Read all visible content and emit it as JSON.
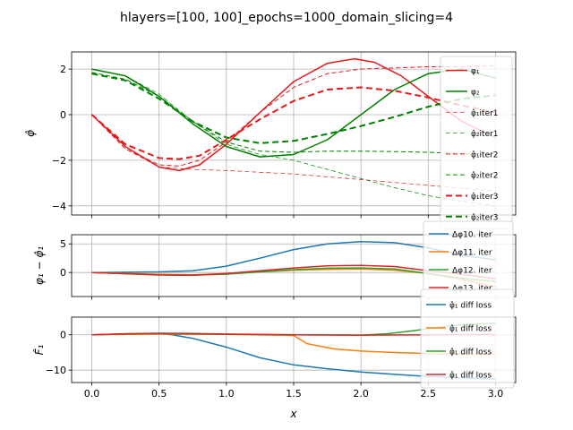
{
  "figure": {
    "title": "hlayers=[100, 100]_epochs=1000_domain_slicing=4"
  },
  "chart_data": [
    {
      "type": "line",
      "id": "top",
      "ylabel": "φ̂",
      "xlim": [
        -0.15,
        3.15
      ],
      "ylim": [
        -4.4,
        2.75
      ],
      "xticks": [
        0.0,
        0.5,
        1.0,
        1.5,
        2.0,
        2.5,
        3.0
      ],
      "yticks": [
        -4,
        -2,
        0,
        2
      ],
      "ytick_labels": [
        "−4",
        "−2",
        "0",
        "2"
      ],
      "grid": true,
      "legend_position": "upper-right",
      "series": [
        {
          "name": "φ₁",
          "color": "#e41a1c",
          "style": "solid",
          "width": 1.5,
          "x": [
            0,
            0.25,
            0.5,
            0.65,
            0.8,
            1.0,
            1.25,
            1.5,
            1.75,
            1.95,
            2.1,
            2.3,
            2.5,
            2.75,
            3.0
          ],
          "y": [
            0,
            -1.4,
            -2.3,
            -2.45,
            -2.2,
            -1.3,
            0.1,
            1.45,
            2.25,
            2.45,
            2.3,
            1.7,
            0.8,
            -0.3,
            -1.0
          ]
        },
        {
          "name": "φ₂",
          "color": "#008000",
          "style": "solid",
          "width": 1.5,
          "x": [
            0,
            0.25,
            0.5,
            0.75,
            1.0,
            1.25,
            1.5,
            1.75,
            2.0,
            2.25,
            2.5,
            2.75,
            3.0
          ],
          "y": [
            2.0,
            1.7,
            0.8,
            -0.4,
            -1.4,
            -1.85,
            -1.75,
            -1.1,
            0.0,
            1.1,
            1.8,
            2.0,
            1.6
          ]
        },
        {
          "name": "φ̂₁iter1",
          "color": "#e41a1c",
          "style": "dashed",
          "width": 0.7,
          "x": [
            0,
            0.25,
            0.5,
            0.75,
            1.0,
            1.5,
            2.0,
            2.5,
            3.0
          ],
          "y": [
            0,
            -1.5,
            -2.3,
            -2.4,
            -2.45,
            -2.6,
            -2.85,
            -3.1,
            -3.35
          ]
        },
        {
          "name": "φ̂₂iter1",
          "color": "#008000",
          "style": "dashed",
          "width": 0.7,
          "x": [
            0,
            0.25,
            0.5,
            0.75,
            1.0,
            1.25,
            1.5,
            1.75,
            2.0,
            2.25,
            2.5,
            2.75,
            3.0
          ],
          "y": [
            2.0,
            1.7,
            0.9,
            -0.3,
            -1.3,
            -1.75,
            -2.0,
            -2.4,
            -2.8,
            -3.2,
            -3.55,
            -3.8,
            -4.0
          ]
        },
        {
          "name": "φ̂₁iter2",
          "color": "#e41a1c",
          "style": "dashed",
          "width": 1.0,
          "x": [
            0,
            0.25,
            0.5,
            0.65,
            0.8,
            1.0,
            1.25,
            1.5,
            1.75,
            2.0,
            2.25,
            2.5,
            2.75,
            3.0
          ],
          "y": [
            0,
            -1.5,
            -2.2,
            -2.25,
            -2.0,
            -1.2,
            0.1,
            1.2,
            1.8,
            2.0,
            2.05,
            2.1,
            2.1,
            2.15
          ]
        },
        {
          "name": "φ̂₂iter2",
          "color": "#008000",
          "style": "dashed",
          "width": 1.0,
          "x": [
            0,
            0.25,
            0.5,
            0.75,
            1.0,
            1.25,
            1.5,
            1.75,
            2.0,
            2.25,
            2.5,
            2.75,
            3.0
          ],
          "y": [
            1.85,
            1.55,
            0.8,
            -0.3,
            -1.2,
            -1.6,
            -1.65,
            -1.6,
            -1.6,
            -1.62,
            -1.65,
            -1.7,
            -1.75
          ]
        },
        {
          "name": "φ̂₁iter3",
          "color": "#e41a1c",
          "style": "dashed",
          "width": 2.0,
          "x": [
            0,
            0.25,
            0.5,
            0.65,
            0.8,
            1.0,
            1.25,
            1.5,
            1.75,
            2.0,
            2.25,
            2.5,
            2.75,
            3.0
          ],
          "y": [
            0,
            -1.3,
            -1.9,
            -1.95,
            -1.8,
            -1.1,
            -0.2,
            0.6,
            1.1,
            1.2,
            1.05,
            0.75,
            0.4,
            0.1
          ]
        },
        {
          "name": "φ̂₂iter3",
          "color": "#008000",
          "style": "dashed",
          "width": 2.0,
          "x": [
            0,
            0.25,
            0.5,
            0.75,
            1.0,
            1.25,
            1.5,
            1.75,
            2.0,
            2.25,
            2.5,
            2.75,
            3.0
          ],
          "y": [
            1.8,
            1.5,
            0.7,
            -0.3,
            -1.0,
            -1.25,
            -1.15,
            -0.85,
            -0.5,
            -0.1,
            0.35,
            0.7,
            0.85
          ]
        }
      ]
    },
    {
      "type": "line",
      "id": "middle",
      "ylabel": "φ₁ − φ̂₁",
      "xlim": [
        -0.15,
        3.15
      ],
      "ylim": [
        -4.2,
        6.6
      ],
      "xticks": [
        0.0,
        0.5,
        1.0,
        1.5,
        2.0,
        2.5,
        3.0
      ],
      "yticks": [
        0,
        5
      ],
      "ytick_labels": [
        "0",
        "5"
      ],
      "grid": true,
      "legend_position": "right",
      "series": [
        {
          "name": "Δφ10. iter",
          "color": "#1f77b4",
          "x": [
            0,
            0.5,
            0.75,
            1.0,
            1.25,
            1.5,
            1.75,
            2.0,
            2.25,
            2.5,
            2.75,
            3.0
          ],
          "y": [
            0,
            0.1,
            0.3,
            1.1,
            2.5,
            4.0,
            5.0,
            5.4,
            5.2,
            4.3,
            3.0,
            2.2
          ]
        },
        {
          "name": "Δφ11. iter",
          "color": "#ff7f0e",
          "x": [
            0,
            0.5,
            0.75,
            1.0,
            1.25,
            1.5,
            1.75,
            2.0,
            2.25,
            2.5,
            2.75,
            3.0
          ],
          "y": [
            0,
            -0.3,
            -0.4,
            -0.2,
            0.1,
            0.4,
            0.55,
            0.6,
            0.4,
            -0.2,
            -1.2,
            -2.5
          ]
        },
        {
          "name": "Δφ12. iter",
          "color": "#2ca02c",
          "x": [
            0,
            0.5,
            0.75,
            1.0,
            1.25,
            1.5,
            1.75,
            2.0,
            2.25,
            2.5,
            2.75,
            3.0
          ],
          "y": [
            0,
            -0.4,
            -0.45,
            -0.3,
            0.1,
            0.5,
            0.75,
            0.8,
            0.6,
            -0.2,
            -1.0,
            -1.6
          ]
        },
        {
          "name": "Δφ13. iter",
          "color": "#d62728",
          "x": [
            0,
            0.5,
            0.75,
            1.0,
            1.25,
            1.5,
            1.75,
            2.0,
            2.25,
            2.5,
            2.75,
            3.0
          ],
          "y": [
            0,
            -0.45,
            -0.5,
            -0.2,
            0.3,
            0.8,
            1.15,
            1.25,
            1.05,
            0.3,
            -0.3,
            -1.1
          ]
        }
      ]
    },
    {
      "type": "line",
      "id": "bottom",
      "ylabel": "F̂₁",
      "xlabel": "x",
      "xlim": [
        -0.15,
        3.15
      ],
      "ylim": [
        -13.5,
        5.0
      ],
      "xticks": [
        0.0,
        0.5,
        1.0,
        1.5,
        2.0,
        2.5,
        3.0
      ],
      "xtick_labels": [
        "0.0",
        "0.5",
        "1.0",
        "1.5",
        "2.0",
        "2.5",
        "3.0"
      ],
      "yticks": [
        -10,
        0
      ],
      "ytick_labels": [
        "−10",
        "0"
      ],
      "grid": true,
      "legend_position": "right",
      "series": [
        {
          "name": "φ̂₁ diff loss",
          "color": "#1f77b4",
          "x": [
            0,
            0.25,
            0.5,
            0.6,
            0.75,
            1.0,
            1.25,
            1.5,
            1.75,
            2.0,
            2.25,
            2.5,
            2.75,
            3.0
          ],
          "y": [
            0,
            0.2,
            0.3,
            0.0,
            -1.0,
            -3.5,
            -6.5,
            -8.5,
            -9.6,
            -10.5,
            -11.2,
            -11.8,
            -12.2,
            -12.5
          ]
        },
        {
          "name": "φ̂₁ diff loss",
          "color": "#ff7f0e",
          "x": [
            0,
            0.5,
            1.0,
            1.4,
            1.5,
            1.6,
            1.8,
            2.0,
            2.25,
            2.5,
            2.75,
            3.0
          ],
          "y": [
            0,
            0.2,
            0.1,
            -0.1,
            -0.2,
            -2.5,
            -4.0,
            -4.6,
            -5.0,
            -5.3,
            -5.4,
            -5.4
          ]
        },
        {
          "name": "φ̂₁ diff loss",
          "color": "#2ca02c",
          "x": [
            0,
            0.5,
            1.0,
            1.5,
            2.0,
            2.2,
            2.4,
            2.6,
            2.8,
            3.0
          ],
          "y": [
            0,
            0.4,
            0.1,
            0.0,
            -0.1,
            0.3,
            1.2,
            2.3,
            3.0,
            3.3
          ]
        },
        {
          "name": "φ̂₁ diff loss",
          "color": "#d62728",
          "x": [
            0,
            0.25,
            0.5,
            0.75,
            1.0,
            1.5,
            2.0,
            2.5,
            3.0
          ],
          "y": [
            0,
            0.3,
            0.45,
            0.35,
            0.2,
            0.0,
            -0.1,
            0.0,
            0.05
          ]
        }
      ]
    }
  ]
}
